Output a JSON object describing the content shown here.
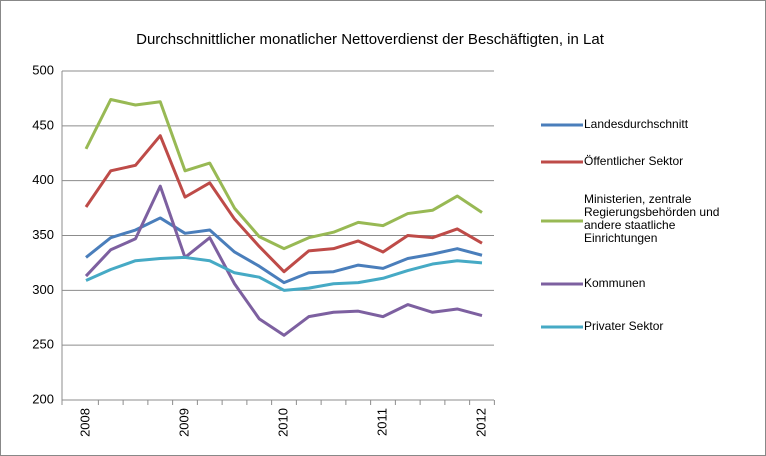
{
  "chart_data": {
    "type": "line",
    "title": "Durchschnittlicher monatlicher Nettoverdienst der Beschäftigten, in Lat",
    "categories": [
      "2008",
      null,
      null,
      null,
      "2009",
      null,
      null,
      null,
      "2010",
      null,
      null,
      null,
      "2011",
      null,
      null,
      null,
      "2012"
    ],
    "series": [
      {
        "name": "Landesdurchschnitt",
        "color": "#4a7ebb",
        "values": [
          330,
          348,
          355,
          366,
          352,
          355,
          335,
          322,
          307,
          316,
          317,
          323,
          320,
          329,
          333,
          338,
          332
        ]
      },
      {
        "name": "Öffentlicher Sektor",
        "color": "#be4b48",
        "values": [
          376,
          409,
          414,
          441,
          385,
          398,
          365,
          340,
          317,
          336,
          338,
          345,
          335,
          350,
          348,
          356,
          343
        ]
      },
      {
        "name": "Ministerien, zentrale Regierungsbehörden und andere staatliche Einrichtungen",
        "color": "#98b954",
        "values": [
          429,
          474,
          469,
          472,
          409,
          416,
          375,
          349,
          338,
          348,
          353,
          362,
          359,
          370,
          373,
          386,
          371
        ]
      },
      {
        "name": "Kommunen",
        "color": "#7d60a0",
        "values": [
          313,
          337,
          347,
          395,
          330,
          348,
          306,
          274,
          259,
          276,
          280,
          281,
          276,
          287,
          280,
          283,
          277
        ]
      },
      {
        "name": "Privater Sektor",
        "color": "#46aac5",
        "values": [
          309,
          319,
          327,
          329,
          330,
          327,
          316,
          312,
          300,
          302,
          306,
          307,
          311,
          318,
          324,
          327,
          325
        ]
      }
    ],
    "ylim": [
      200,
      500
    ],
    "yticks": [
      200,
      250,
      300,
      350,
      400,
      450,
      500
    ],
    "grid": true,
    "legend": "right"
  }
}
